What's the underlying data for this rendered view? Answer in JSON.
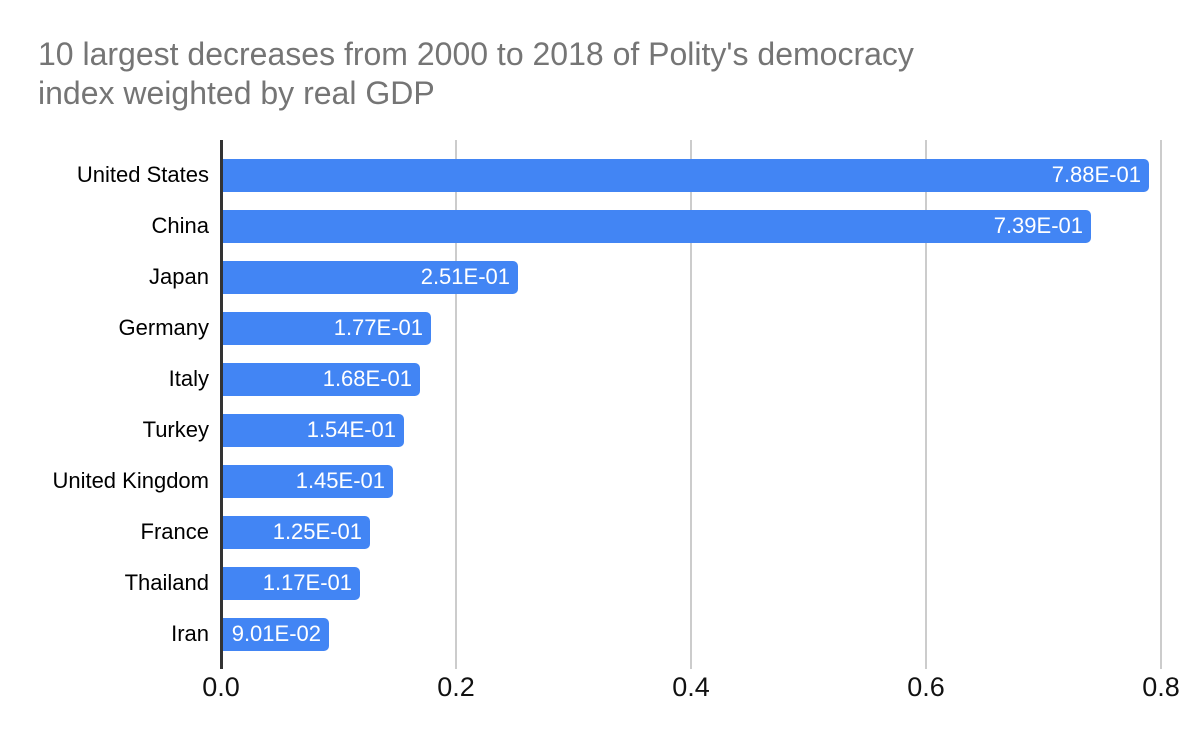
{
  "header": {
    "title_lines": [
      "10 largest decreases from 2000 to 2018 of Polity's democracy",
      "index weighted by real GDP"
    ]
  },
  "colors": {
    "bar": "#4285f4",
    "title_text": "#757575",
    "axis_line": "#333333",
    "gridline": "#cccccc",
    "category_text": "#000000",
    "tick_text": "#111111",
    "value_text": "#ffffff",
    "background": "#ffffff"
  },
  "chart_data": {
    "type": "bar",
    "orientation": "horizontal",
    "title": "10 largest decreases from 2000 to 2018 of Polity's democracy index weighted by real GDP",
    "categories": [
      "United States",
      "China",
      "Japan",
      "Germany",
      "Italy",
      "Turkey",
      "United Kingdom",
      "France",
      "Thailand",
      "Iran"
    ],
    "values": [
      0.788,
      0.739,
      0.251,
      0.177,
      0.168,
      0.154,
      0.145,
      0.125,
      0.117,
      0.0901
    ],
    "value_labels": [
      "7.88E-01",
      "7.39E-01",
      "2.51E-01",
      "1.77E-01",
      "1.68E-01",
      "1.54E-01",
      "1.45E-01",
      "1.25E-01",
      "1.17E-01",
      "9.01E-02"
    ],
    "xlabel": "",
    "ylabel": "",
    "xlim": [
      0,
      0.8
    ],
    "x_tick_values": [
      0.0,
      0.2,
      0.4,
      0.6,
      0.8
    ],
    "x_tick_labels": [
      "0.0",
      "0.2",
      "0.4",
      "0.6",
      "0.8"
    ],
    "grid": true,
    "legend": "none"
  }
}
